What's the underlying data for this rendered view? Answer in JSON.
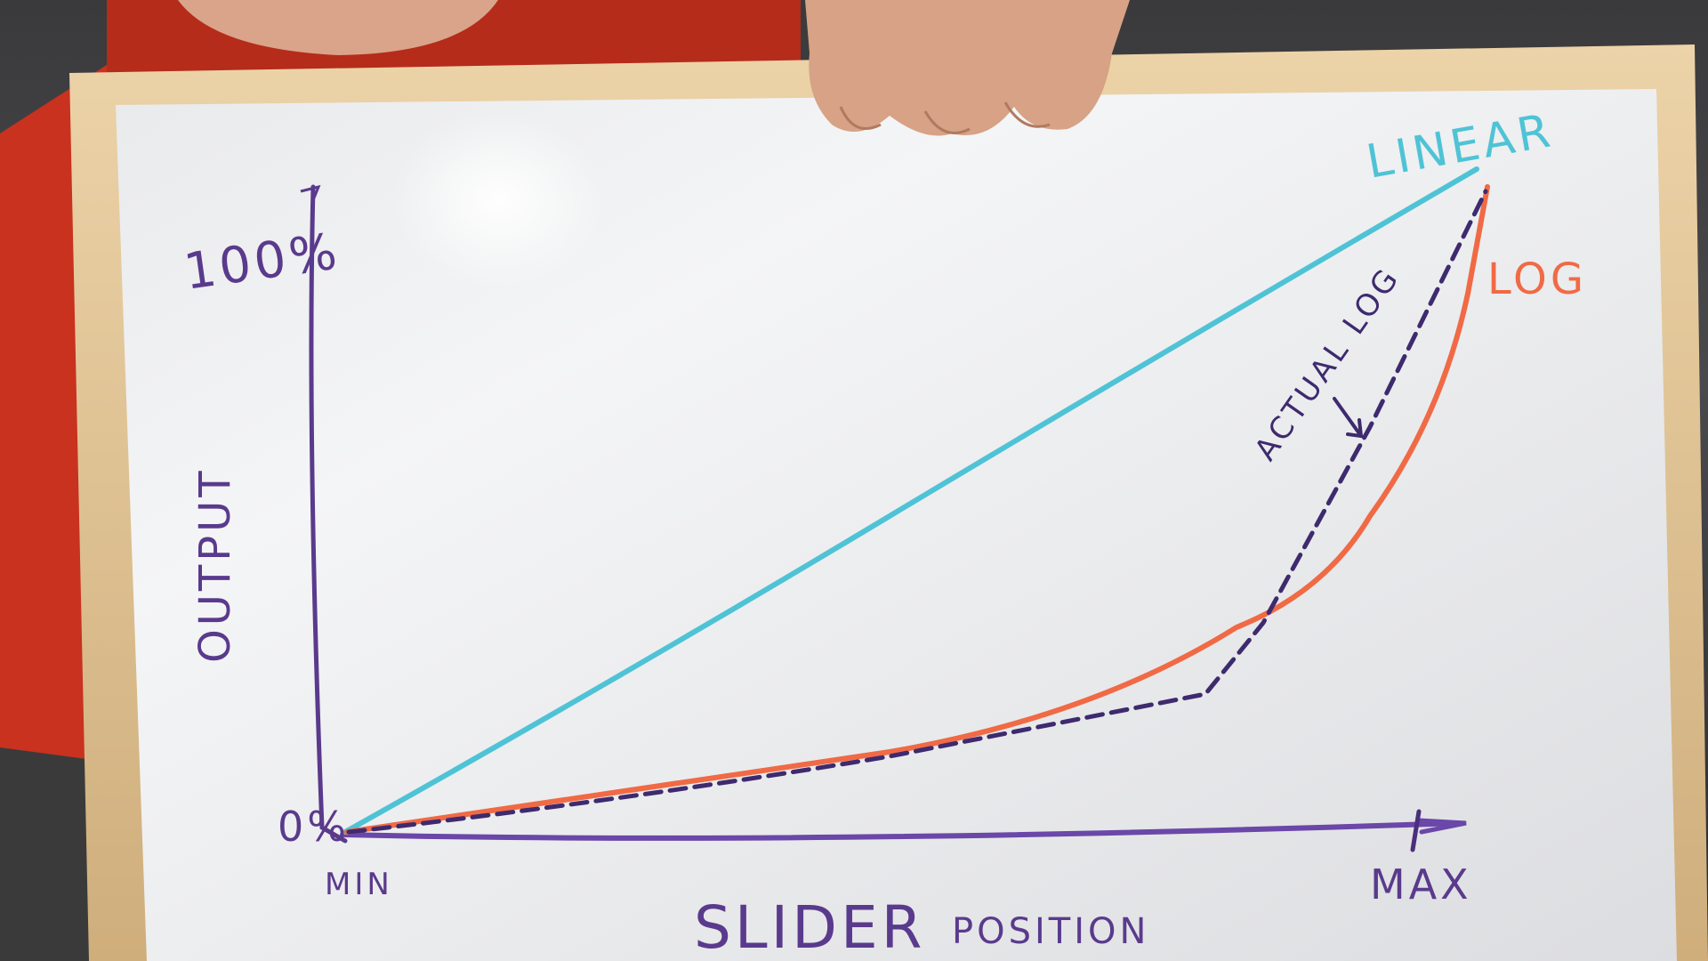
{
  "board": {
    "y_axis_label": "OUTPUT",
    "y_top_label": "100%",
    "y_bottom_label": "0%",
    "x_min_label": "MIN",
    "x_max_label": "MAX",
    "x_axis_label_big": "SLIDER",
    "x_axis_label_small": "POSITION",
    "curve_labels": {
      "linear": "LINEAR",
      "log": "LOG",
      "actual_log": "ACTUAL LOG"
    }
  },
  "colors": {
    "linear": "#4fc3d6",
    "log": "#f06a45",
    "axis": "#5a3a8c",
    "actual_log": "#3e2a6e",
    "frame": "#e3c79a",
    "whiteboard": "#eeeff0",
    "shirt": "#c8321e",
    "skin": "#d9a48a"
  }
}
